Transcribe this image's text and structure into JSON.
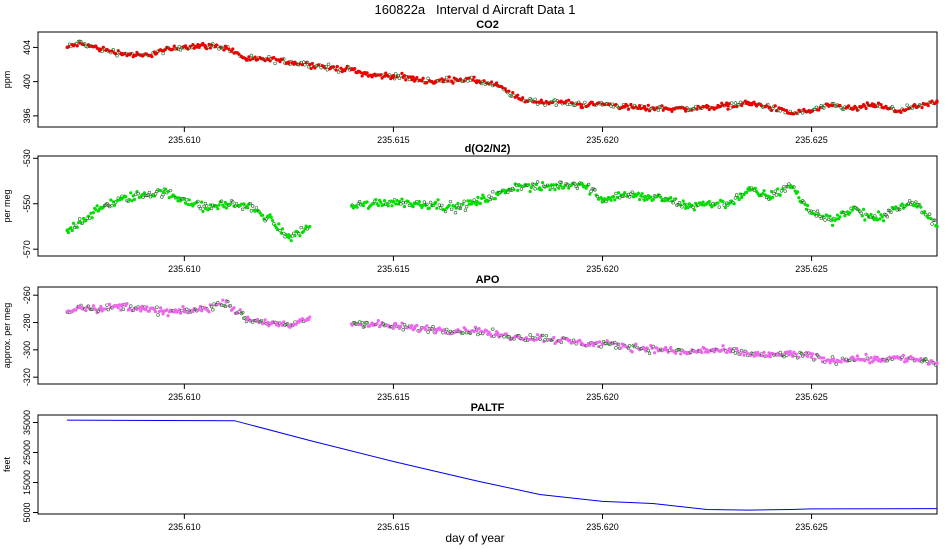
{
  "page": {
    "title": "160822a   Interval d Aircraft Data 1",
    "xlabel": "day of year"
  },
  "colors": {
    "co2": "#ee0000",
    "o2n2": "#00e000",
    "apo": "#ee66ee",
    "paltf": "#0000ee"
  },
  "chart_data": [
    {
      "type": "scatter",
      "title": "CO2",
      "ylabel": "ppm",
      "xlim": [
        235.6065,
        235.628
      ],
      "ylim": [
        394.7,
        405.8
      ],
      "xticks": [
        235.61,
        235.615,
        235.62,
        235.625
      ],
      "xtick_labels": [
        "235.610",
        "235.615",
        "235.620",
        "235.625"
      ],
      "yticks": [
        396,
        400,
        404
      ],
      "ytick_labels": [
        "396",
        "400",
        "404"
      ],
      "color": "#ee0000",
      "series": [
        {
          "x": [
            235.6072,
            235.6075,
            235.608,
            235.6085,
            235.609,
            235.6095,
            235.61,
            235.6105,
            235.611,
            235.6115,
            235.612,
            235.6125,
            235.613,
            235.6135,
            235.614,
            235.6145,
            235.615,
            235.6155,
            235.616,
            235.6165,
            235.617,
            235.6175,
            235.618,
            235.6185,
            235.619,
            235.6195,
            235.62,
            235.6205,
            235.621,
            235.6215,
            235.622,
            235.6225,
            235.623,
            235.6235,
            235.624,
            235.6245,
            235.625,
            235.6255,
            235.626,
            235.6265,
            235.627,
            235.6275,
            235.628
          ],
          "y": [
            404.0,
            404.5,
            403.8,
            403.3,
            403.0,
            403.6,
            404.1,
            404.2,
            404.0,
            402.6,
            402.6,
            402.3,
            402.0,
            401.6,
            401.4,
            400.7,
            400.7,
            400.3,
            400.0,
            400.3,
            400.1,
            399.5,
            398.0,
            397.6,
            397.6,
            397.3,
            397.4,
            397.1,
            396.9,
            396.9,
            396.8,
            397.0,
            397.2,
            397.5,
            397.0,
            396.3,
            396.6,
            397.2,
            396.8,
            397.3,
            396.6,
            397.0,
            397.6
          ],
          "spread": 0.5
        }
      ]
    },
    {
      "type": "scatter",
      "title": "d(O2/N2)",
      "ylabel": "per meg",
      "xlim": [
        235.6065,
        235.628
      ],
      "ylim": [
        -573,
        -529
      ],
      "xticks": [
        235.61,
        235.615,
        235.62,
        235.625
      ],
      "xtick_labels": [
        "235.610",
        "235.615",
        "235.620",
        "235.625"
      ],
      "yticks": [
        -570,
        -550,
        -530
      ],
      "ytick_labels": [
        "-570",
        "-550",
        "-530"
      ],
      "color": "#00e000",
      "series": [
        {
          "x": [
            235.6072,
            235.6075,
            235.608,
            235.6085,
            235.609,
            235.6095,
            235.61,
            235.6105,
            235.611,
            235.6115,
            235.612,
            235.6125,
            235.613,
            235.6135,
            235.614,
            235.6145,
            235.615,
            235.6155,
            235.616,
            235.6165,
            235.617,
            235.6175,
            235.618,
            235.6185,
            235.619,
            235.6195,
            235.62,
            235.6205,
            235.621,
            235.6215,
            235.622,
            235.6225,
            235.623,
            235.6235,
            235.624,
            235.6245,
            235.625,
            235.6255,
            235.626,
            235.6265,
            235.627,
            235.6275,
            235.628
          ],
          "y": [
            -562,
            -558,
            -552,
            -548,
            -546,
            -545,
            -548,
            -552,
            -550,
            -551,
            -556,
            -565,
            -560,
            null,
            -551,
            -550,
            -549,
            -550,
            -550,
            -552,
            -549,
            -546,
            -542,
            -543,
            -542,
            -541,
            -548,
            -546,
            -547,
            -548,
            -551,
            -550,
            -550,
            -544,
            -547,
            -542,
            -554,
            -557,
            -552,
            -557,
            -552,
            -550,
            -560
          ],
          "spread": 3
        }
      ]
    },
    {
      "type": "scatter",
      "title": "APO",
      "ylabel": "approx. per meg",
      "xlim": [
        235.6065,
        235.628
      ],
      "ylim": [
        -325,
        -254
      ],
      "xticks": [
        235.61,
        235.615,
        235.62,
        235.625
      ],
      "xtick_labels": [
        "235.610",
        "235.615",
        "235.620",
        "235.625"
      ],
      "yticks": [
        -320,
        -300,
        -280,
        -260
      ],
      "ytick_labels": [
        "-320",
        "-300",
        "-280",
        "-260"
      ],
      "color": "#ee66ee",
      "series": [
        {
          "x": [
            235.6072,
            235.6075,
            235.608,
            235.6085,
            235.609,
            235.6095,
            235.61,
            235.6105,
            235.611,
            235.6115,
            235.612,
            235.6125,
            235.613,
            235.6135,
            235.614,
            235.6145,
            235.615,
            235.6155,
            235.616,
            235.6165,
            235.617,
            235.6175,
            235.618,
            235.6185,
            235.619,
            235.6195,
            235.62,
            235.6205,
            235.621,
            235.6215,
            235.622,
            235.6225,
            235.623,
            235.6235,
            235.624,
            235.6245,
            235.625,
            235.6255,
            235.626,
            235.6265,
            235.627,
            235.6275,
            235.628
          ],
          "y": [
            -272,
            -268,
            -270,
            -268,
            -270,
            -272,
            -272,
            -270,
            -265,
            -278,
            -280,
            -283,
            -276,
            null,
            -281,
            -281,
            -283,
            -284,
            -285,
            -286,
            -286,
            -289,
            -291,
            -291,
            -293,
            -295,
            -296,
            -297,
            -299,
            -300,
            -302,
            -300,
            -301,
            -303,
            -304,
            -303,
            -305,
            -308,
            -306,
            -307,
            -306,
            -307,
            -310
          ],
          "spread": 4
        }
      ]
    },
    {
      "type": "line",
      "title": "PALTF",
      "ylabel": "feet",
      "xlim": [
        235.6065,
        235.628
      ],
      "ylim": [
        4500,
        37500
      ],
      "xticks": [
        235.61,
        235.615,
        235.62,
        235.625
      ],
      "xtick_labels": [
        "235.610",
        "235.615",
        "235.620",
        "235.625"
      ],
      "yticks": [
        5000,
        15000,
        25000,
        35000
      ],
      "ytick_labels": [
        "5000",
        "15000",
        "25000",
        "35000"
      ],
      "color": "#0000ee",
      "series": [
        {
          "x": [
            235.6072,
            235.6112,
            235.613,
            235.615,
            235.617,
            235.6185,
            235.62,
            235.6212,
            235.6225,
            235.6235,
            235.6245,
            235.625,
            235.628
          ],
          "y": [
            35800,
            35600,
            29000,
            22000,
            15500,
            11000,
            8700,
            8000,
            6000,
            5800,
            6000,
            6200,
            6300
          ]
        }
      ]
    }
  ]
}
